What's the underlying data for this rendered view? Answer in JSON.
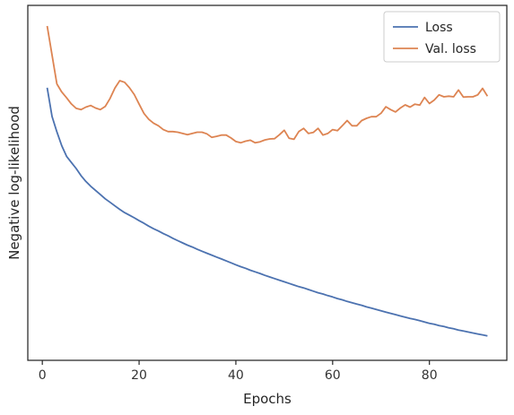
{
  "chart_data": {
    "type": "line",
    "xlabel": "Epochs",
    "ylabel": "Negative log-likelihood",
    "xlim": [
      -3,
      96
    ],
    "ylim": [
      0,
      100
    ],
    "xticks": [
      0,
      20,
      40,
      60,
      80
    ],
    "yticks_shown": false,
    "grid": false,
    "legend_position": "top-right",
    "x": [
      1,
      2,
      3,
      4,
      5,
      6,
      7,
      8,
      9,
      10,
      11,
      12,
      13,
      14,
      15,
      16,
      17,
      18,
      19,
      20,
      21,
      22,
      23,
      24,
      25,
      26,
      27,
      28,
      29,
      30,
      31,
      32,
      33,
      34,
      35,
      36,
      37,
      38,
      39,
      40,
      41,
      42,
      43,
      44,
      45,
      46,
      47,
      48,
      49,
      50,
      51,
      52,
      53,
      54,
      55,
      56,
      57,
      58,
      59,
      60,
      61,
      62,
      63,
      64,
      65,
      66,
      67,
      68,
      69,
      70,
      71,
      72,
      73,
      74,
      75,
      76,
      77,
      78,
      79,
      80,
      81,
      82,
      83,
      84,
      85,
      86,
      87,
      88,
      89,
      90,
      91,
      92
    ],
    "series": [
      {
        "name": "Loss",
        "color": "#4c72b0",
        "values": [
          80.8,
          71.9,
          67.1,
          62.8,
          59.5,
          57.6,
          55.7,
          53.5,
          51.7,
          50.2,
          48.9,
          47.6,
          46.3,
          45.2,
          44.1,
          43.0,
          42.0,
          41.2,
          40.4,
          39.5,
          38.7,
          37.8,
          37.0,
          36.3,
          35.5,
          34.8,
          34.0,
          33.3,
          32.6,
          31.9,
          31.3,
          30.6,
          30.0,
          29.4,
          28.8,
          28.2,
          27.6,
          27.0,
          26.4,
          25.8,
          25.2,
          24.7,
          24.1,
          23.6,
          23.1,
          22.5,
          22.0,
          21.5,
          21.0,
          20.5,
          20.0,
          19.5,
          19.0,
          18.6,
          18.1,
          17.6,
          17.1,
          16.7,
          16.2,
          15.8,
          15.3,
          14.9,
          14.4,
          14.0,
          13.6,
          13.2,
          12.7,
          12.3,
          11.9,
          11.5,
          11.1,
          10.7,
          10.3,
          9.9,
          9.5,
          9.1,
          8.8,
          8.4,
          8.0,
          7.6,
          7.3,
          6.9,
          6.6,
          6.2,
          5.9,
          5.5,
          5.2,
          4.9,
          4.6,
          4.3,
          4.0,
          3.7
        ]
      },
      {
        "name": "Val. loss",
        "color": "#dd8452",
        "values": [
          100,
          91.0,
          82.0,
          79.5,
          77.7,
          75.8,
          74.4,
          74.0,
          74.8,
          75.3,
          74.5,
          74.0,
          75.0,
          77.5,
          80.7,
          83.0,
          82.5,
          80.8,
          78.7,
          75.7,
          72.8,
          71.0,
          69.8,
          69.0,
          67.8,
          67.2,
          67.2,
          67.0,
          66.6,
          66.2,
          66.6,
          67.0,
          67.0,
          66.5,
          65.4,
          65.7,
          66.1,
          66.1,
          65.2,
          64.1,
          63.7,
          64.2,
          64.5,
          63.7,
          64.0,
          64.6,
          64.9,
          65.0,
          66.2,
          67.6,
          65.1,
          64.8,
          67.2,
          68.2,
          66.6,
          66.9,
          68.2,
          66.1,
          66.6,
          67.8,
          67.5,
          69.0,
          70.6,
          69.0,
          69.0,
          70.6,
          71.3,
          71.8,
          71.8,
          72.9,
          74.9,
          74.0,
          73.3,
          74.5,
          75.5,
          74.8,
          75.7,
          75.4,
          77.8,
          75.9,
          77.0,
          78.6,
          78.0,
          78.2,
          78.0,
          80.1,
          77.9,
          78.0,
          78.0,
          78.6,
          80.6,
          78.2
        ]
      }
    ]
  }
}
